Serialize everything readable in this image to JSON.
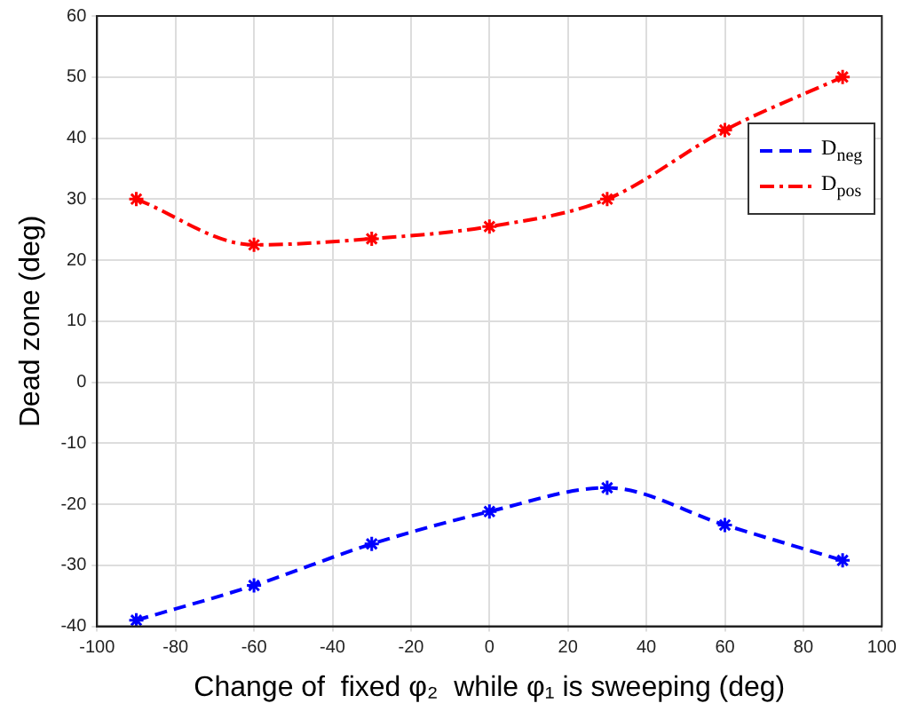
{
  "chart_data": {
    "type": "line",
    "xlabel": "Change of  fixed φ₂  while φ₁ is sweeping (deg)",
    "ylabel": "Dead zone (deg)",
    "x": [
      -90,
      -60,
      -30,
      0,
      30,
      60,
      90
    ],
    "series": [
      {
        "name": "D$_{neg}$",
        "color": "#0000ff",
        "line_style": "dashed",
        "values": [
          -39,
          -33.3,
          -26.5,
          -21.2,
          -17.3,
          -23.4,
          -29.2
        ]
      },
      {
        "name": "D$_{pos}$",
        "color": "#ff0000",
        "line_style": "dashdot",
        "values": [
          30,
          22.5,
          23.5,
          25.5,
          30,
          41.3,
          50
        ]
      }
    ],
    "xlim": [
      -100,
      100
    ],
    "xticks": [
      -100,
      -80,
      -60,
      -40,
      -20,
      0,
      20,
      40,
      60,
      80,
      100
    ],
    "ylim": [
      -40,
      60
    ],
    "yticks": [
      -40,
      -30,
      -20,
      -10,
      0,
      10,
      20,
      30,
      40,
      50,
      60
    ],
    "grid": true,
    "legend": "top right",
    "marker": "cross"
  }
}
